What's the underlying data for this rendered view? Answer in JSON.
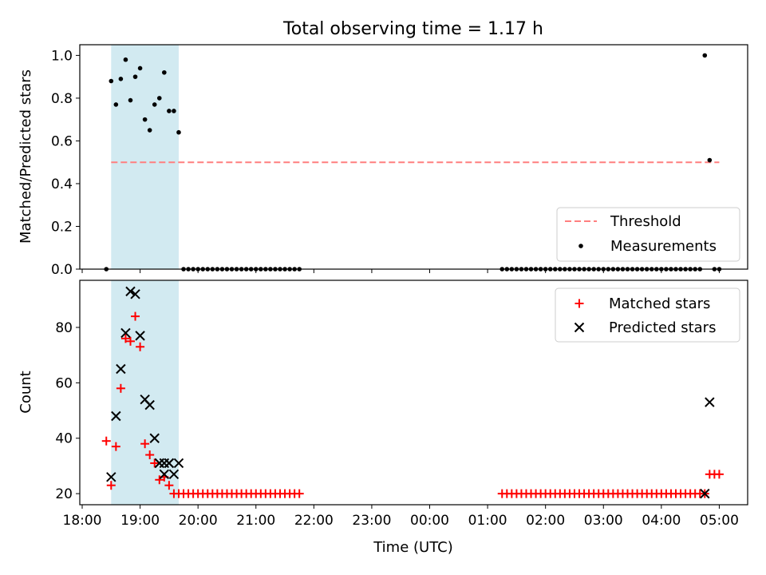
{
  "chart_data": [
    {
      "type": "scatter",
      "title": "Total observing time = 1.17 h",
      "xlabel": "",
      "ylabel": "Matched/Predicted stars",
      "xlim": [
        "18:00",
        "05:00"
      ],
      "ylim": [
        0,
        1.05
      ],
      "yticks": [
        "0.0",
        "0.2",
        "0.4",
        "0.6",
        "0.8",
        "1.0"
      ],
      "highlight_span": [
        "18:30",
        "19:40"
      ],
      "legend_position": "lower right",
      "threshold": {
        "name": "Threshold",
        "value": 0.5,
        "x": [
          "18:30",
          "05:00"
        ],
        "color": "#ff7f7f",
        "style": "dashed"
      },
      "series": [
        {
          "name": "Measurements",
          "color": "#000000",
          "marker": "dot",
          "x": [
            "18:25",
            "18:30",
            "18:35",
            "18:40",
            "18:45",
            "18:50",
            "18:55",
            "19:00",
            "19:05",
            "19:10",
            "19:15",
            "19:20",
            "19:25",
            "19:30",
            "19:35",
            "19:40",
            "19:45",
            "19:50",
            "19:55",
            "20:00",
            "20:05",
            "20:10",
            "20:15",
            "20:20",
            "20:25",
            "20:30",
            "20:35",
            "20:40",
            "20:45",
            "20:50",
            "20:55",
            "21:00",
            "21:05",
            "21:10",
            "21:15",
            "21:20",
            "21:25",
            "21:30",
            "21:35",
            "21:40",
            "21:45",
            "01:15",
            "01:20",
            "01:25",
            "01:30",
            "01:35",
            "01:40",
            "01:45",
            "01:50",
            "01:55",
            "02:00",
            "02:05",
            "02:10",
            "02:15",
            "02:20",
            "02:25",
            "02:30",
            "02:35",
            "02:40",
            "02:45",
            "02:50",
            "02:55",
            "03:00",
            "03:05",
            "03:10",
            "03:15",
            "03:20",
            "03:25",
            "03:30",
            "03:35",
            "03:40",
            "03:45",
            "03:50",
            "03:55",
            "04:00",
            "04:05",
            "04:10",
            "04:15",
            "04:20",
            "04:25",
            "04:30",
            "04:35",
            "04:40",
            "04:45",
            "04:50",
            "04:55",
            "05:00"
          ],
          "y": [
            0.0,
            0.88,
            0.77,
            0.89,
            0.98,
            0.79,
            0.9,
            0.94,
            0.7,
            0.65,
            0.77,
            0.8,
            0.92,
            0.74,
            0.74,
            0.64,
            0.0,
            0.0,
            0.0,
            0.0,
            0.0,
            0.0,
            0.0,
            0.0,
            0.0,
            0.0,
            0.0,
            0.0,
            0.0,
            0.0,
            0.0,
            0.0,
            0.0,
            0.0,
            0.0,
            0.0,
            0.0,
            0.0,
            0.0,
            0.0,
            0.0,
            0.0,
            0.0,
            0.0,
            0.0,
            0.0,
            0.0,
            0.0,
            0.0,
            0.0,
            0.0,
            0.0,
            0.0,
            0.0,
            0.0,
            0.0,
            0.0,
            0.0,
            0.0,
            0.0,
            0.0,
            0.0,
            0.0,
            0.0,
            0.0,
            0.0,
            0.0,
            0.0,
            0.0,
            0.0,
            0.0,
            0.0,
            0.0,
            0.0,
            0.0,
            0.0,
            0.0,
            0.0,
            0.0,
            0.0,
            0.0,
            0.0,
            0.0,
            1.0,
            0.51,
            0.0,
            0.0
          ]
        }
      ]
    },
    {
      "type": "scatter",
      "title": "",
      "xlabel": "Time (UTC)",
      "ylabel": "Count",
      "xlim": [
        "18:00",
        "05:00"
      ],
      "ylim": [
        16,
        97
      ],
      "xticks": [
        "18:00",
        "19:00",
        "20:00",
        "21:00",
        "22:00",
        "23:00",
        "00:00",
        "01:00",
        "02:00",
        "03:00",
        "04:00",
        "05:00"
      ],
      "yticks": [
        "20",
        "40",
        "60",
        "80"
      ],
      "highlight_span": [
        "18:30",
        "19:40"
      ],
      "legend_position": "upper right",
      "series": [
        {
          "name": "Matched stars",
          "color": "#ff0000",
          "marker": "plus",
          "x": [
            "18:25",
            "18:30",
            "18:35",
            "18:40",
            "18:45",
            "18:50",
            "18:55",
            "19:00",
            "19:05",
            "19:10",
            "19:15",
            "19:20",
            "19:25",
            "19:30",
            "19:35",
            "19:40",
            "19:45",
            "19:50",
            "19:55",
            "20:00",
            "20:05",
            "20:10",
            "20:15",
            "20:20",
            "20:25",
            "20:30",
            "20:35",
            "20:40",
            "20:45",
            "20:50",
            "20:55",
            "21:00",
            "21:05",
            "21:10",
            "21:15",
            "21:20",
            "21:25",
            "21:30",
            "21:35",
            "21:40",
            "21:45",
            "01:15",
            "01:20",
            "01:25",
            "01:30",
            "01:35",
            "01:40",
            "01:45",
            "01:50",
            "01:55",
            "02:00",
            "02:05",
            "02:10",
            "02:15",
            "02:20",
            "02:25",
            "02:30",
            "02:35",
            "02:40",
            "02:45",
            "02:50",
            "02:55",
            "03:00",
            "03:05",
            "03:10",
            "03:15",
            "03:20",
            "03:25",
            "03:30",
            "03:35",
            "03:40",
            "03:45",
            "03:50",
            "03:55",
            "04:00",
            "04:05",
            "04:10",
            "04:15",
            "04:20",
            "04:25",
            "04:30",
            "04:35",
            "04:40",
            "04:45",
            "04:50",
            "04:55",
            "05:00"
          ],
          "y": [
            39,
            23,
            37,
            58,
            76,
            75,
            84,
            73,
            38,
            34,
            31,
            25,
            26,
            23,
            20,
            20,
            20,
            20,
            20,
            20,
            20,
            20,
            20,
            20,
            20,
            20,
            20,
            20,
            20,
            20,
            20,
            20,
            20,
            20,
            20,
            20,
            20,
            20,
            20,
            20,
            20,
            20,
            20,
            20,
            20,
            20,
            20,
            20,
            20,
            20,
            20,
            20,
            20,
            20,
            20,
            20,
            20,
            20,
            20,
            20,
            20,
            20,
            20,
            20,
            20,
            20,
            20,
            20,
            20,
            20,
            20,
            20,
            20,
            20,
            20,
            20,
            20,
            20,
            20,
            20,
            20,
            20,
            20,
            20,
            27,
            27,
            27
          ]
        },
        {
          "name": "Predicted stars",
          "color": "#000000",
          "marker": "x",
          "x": [
            "18:30",
            "18:35",
            "18:40",
            "18:45",
            "18:50",
            "18:55",
            "19:00",
            "19:05",
            "19:10",
            "19:15",
            "19:20",
            "19:25",
            "19:30",
            "19:35",
            "19:40",
            "19:20",
            "19:25",
            "19:30",
            "04:45",
            "04:50"
          ],
          "y": [
            26,
            48,
            65,
            78,
            93,
            92,
            77,
            54,
            52,
            40,
            31,
            27,
            31,
            27,
            31,
            31,
            31,
            31,
            20,
            53
          ]
        }
      ]
    }
  ]
}
